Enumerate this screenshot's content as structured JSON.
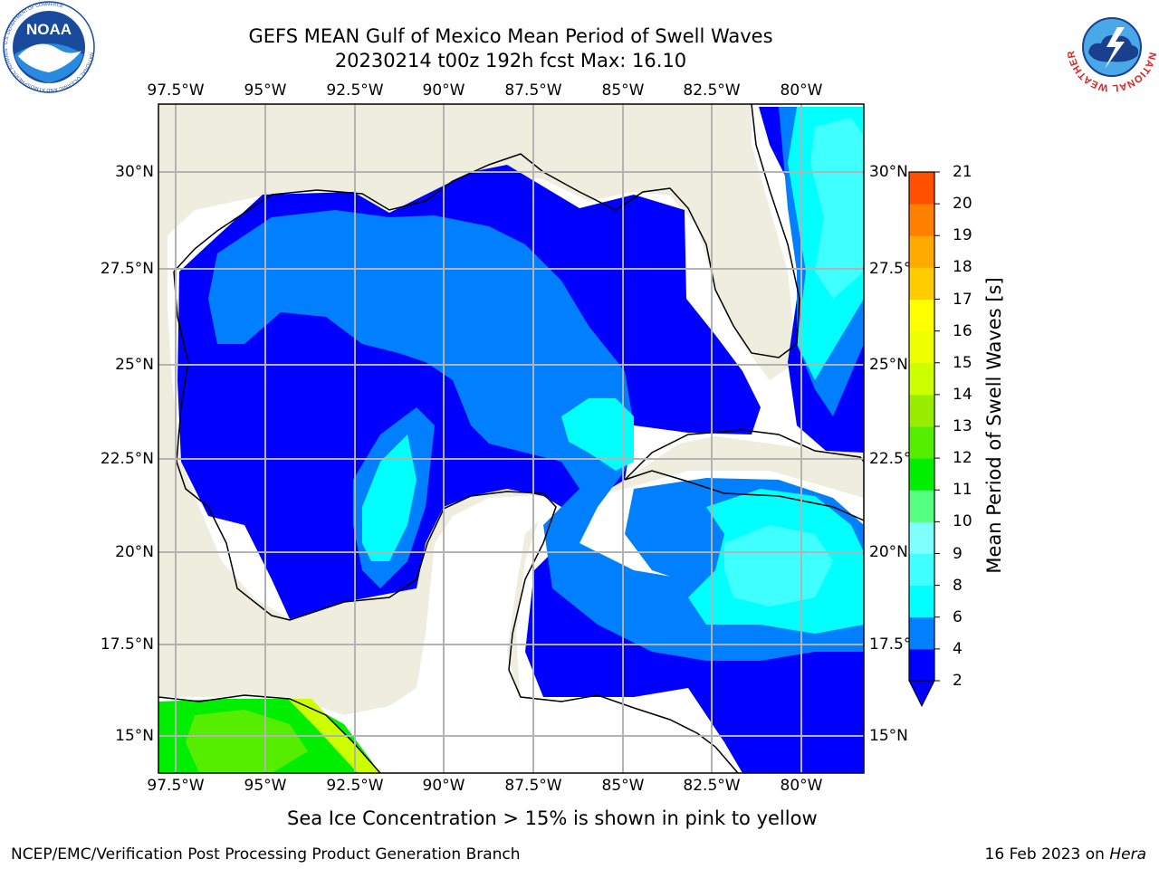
{
  "header": {
    "title_line1": "GEFS MEAN Gulf of Mexico Mean Period of Swell Waves",
    "title_line2": "20230214 t00z 192h fcst   Max: 16.10"
  },
  "map": {
    "lon_ticks": [
      "97.5°W",
      "95°W",
      "92.5°W",
      "90°W",
      "87.5°W",
      "85°W",
      "82.5°W",
      "80°W"
    ],
    "lat_ticks_left": [
      "30°N",
      "27.5°N",
      "25°N",
      "22.5°N",
      "20°N",
      "17.5°N",
      "15°N"
    ],
    "lat_ticks_right": [
      "30°N",
      "27.5°N",
      "25°N",
      "22.5°N",
      "20°N",
      "17.5°N",
      "15°N"
    ],
    "land_color": "#efedde",
    "grid_color": "#b3b3b3"
  },
  "colorbar": {
    "label": "Mean Period of Swell Waves [s]",
    "ticks": [
      "2",
      "4",
      "6",
      "8",
      "9",
      "10",
      "11",
      "12",
      "13",
      "14",
      "15",
      "16",
      "17",
      "18",
      "19",
      "20",
      "21"
    ],
    "colors": [
      "#0000ff",
      "#0080ff",
      "#00ffff",
      "#40ffff",
      "#80ffff",
      "#55ff80",
      "#00ee00",
      "#55ee00",
      "#99ee00",
      "#ccff00",
      "#eeff00",
      "#ffff00",
      "#ffcc00",
      "#ffaa00",
      "#ff8000",
      "#ff5000",
      "#ff2000",
      "#ff0000"
    ],
    "extend_color": "#0000ff"
  },
  "footer": {
    "note": "Sea Ice Concentration > 15% is shown in pink to yellow",
    "credit": "NCEP/EMC/Verification Post Processing Product Generation Branch",
    "date": "16 Feb 2023 on",
    "machine": "Hera"
  },
  "logos": {
    "left_text": "NOAA",
    "left_ring": "NATIONAL OCEANIC AND ATMOSPHERIC ADMINISTRATION",
    "left_bottom": "U.S. DEPARTMENT OF COMMERCE",
    "right_ring": "NATIONAL WEATHER SERVICE"
  }
}
